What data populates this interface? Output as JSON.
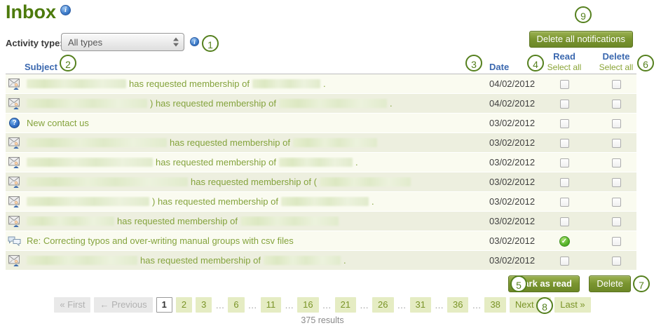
{
  "page": {
    "title": "Inbox"
  },
  "icons": {
    "info_glyph": "i",
    "contact_glyph": "?",
    "check_glyph": "✓"
  },
  "filter": {
    "label": "Activity type:",
    "value": "All types"
  },
  "toolbar": {
    "delete_all_label": "Delete all notifications"
  },
  "table": {
    "headers": {
      "subject": "Subject",
      "date": "Date",
      "read": "Read",
      "delete": "Delete",
      "read_select_all": "Select all",
      "delete_select_all": "Select all"
    },
    "rows": [
      {
        "icon": "membership-request",
        "segments": [
          {
            "blur": 142
          },
          {
            "text": "has requested membership of"
          },
          {
            "blur": 97
          },
          {
            "text": "."
          }
        ],
        "date": "04/02/2012",
        "read": "checkbox",
        "delete": "checkbox"
      },
      {
        "icon": "membership-request",
        "segments": [
          {
            "blur": 172
          },
          {
            "text": ") has requested membership of"
          },
          {
            "blur": 154
          },
          {
            "text": "."
          }
        ],
        "date": "04/02/2012",
        "read": "checkbox",
        "delete": "checkbox"
      },
      {
        "icon": "contact-us",
        "segments": [
          {
            "text": "New contact us"
          }
        ],
        "date": "03/02/2012",
        "read": "checkbox",
        "delete": "checkbox"
      },
      {
        "icon": "membership-request",
        "segments": [
          {
            "blur": 200
          },
          {
            "text": "has requested membership of"
          },
          {
            "blur": 120
          }
        ],
        "date": "03/02/2012",
        "read": "checkbox",
        "delete": "checkbox"
      },
      {
        "icon": "membership-request",
        "segments": [
          {
            "blur": 180
          },
          {
            "text": "has requested membership of"
          },
          {
            "blur": 105
          },
          {
            "text": "."
          }
        ],
        "date": "03/02/2012",
        "read": "checkbox",
        "delete": "checkbox"
      },
      {
        "icon": "membership-request",
        "segments": [
          {
            "blur": 230
          },
          {
            "text": "has requested membership of ("
          },
          {
            "blur": 130
          }
        ],
        "date": "03/02/2012",
        "read": "checkbox",
        "delete": "checkbox"
      },
      {
        "icon": "membership-request",
        "segments": [
          {
            "blur": 175
          },
          {
            "text": ") has requested membership of"
          },
          {
            "blur": 125
          },
          {
            "text": "."
          }
        ],
        "date": "03/02/2012",
        "read": "checkbox",
        "delete": "checkbox"
      },
      {
        "icon": "membership-request",
        "segments": [
          {
            "blur": 125
          },
          {
            "text": "has requested membership of"
          },
          {
            "blur": 140
          }
        ],
        "date": "03/02/2012",
        "read": "checkbox",
        "delete": "checkbox"
      },
      {
        "icon": "forum-post",
        "segments": [
          {
            "text": "Re: Correcting typos and over-writing manual groups with csv files"
          }
        ],
        "date": "03/02/2012",
        "read": "read",
        "delete": "checkbox"
      },
      {
        "icon": "membership-request",
        "segments": [
          {
            "blur": 158
          },
          {
            "text": "has requested membership of"
          },
          {
            "blur": 110
          },
          {
            "text": "."
          }
        ],
        "date": "03/02/2012",
        "read": "checkbox",
        "delete": "checkbox"
      }
    ]
  },
  "actions": {
    "mark_as_read": "Mark as read",
    "delete": "Delete"
  },
  "pagination": {
    "items": [
      {
        "label": "« First",
        "type": "disabled"
      },
      {
        "label": "← Previous",
        "type": "disabled"
      },
      {
        "label": "1",
        "type": "current"
      },
      {
        "label": "2",
        "type": "page"
      },
      {
        "label": "3",
        "type": "page"
      },
      {
        "label": "…",
        "type": "ellipsis"
      },
      {
        "label": "6",
        "type": "page"
      },
      {
        "label": "…",
        "type": "ellipsis"
      },
      {
        "label": "11",
        "type": "page"
      },
      {
        "label": "…",
        "type": "ellipsis"
      },
      {
        "label": "16",
        "type": "page"
      },
      {
        "label": "…",
        "type": "ellipsis"
      },
      {
        "label": "21",
        "type": "page"
      },
      {
        "label": "…",
        "type": "ellipsis"
      },
      {
        "label": "26",
        "type": "page"
      },
      {
        "label": "…",
        "type": "ellipsis"
      },
      {
        "label": "31",
        "type": "page"
      },
      {
        "label": "…",
        "type": "ellipsis"
      },
      {
        "label": "36",
        "type": "page"
      },
      {
        "label": "…",
        "type": "ellipsis"
      },
      {
        "label": "38",
        "type": "page"
      },
      {
        "label": "Next →",
        "type": "page"
      },
      {
        "label": "Last »",
        "type": "page"
      }
    ],
    "results": "375 results"
  },
  "callouts": [
    "1",
    "2",
    "3",
    "4",
    "5",
    "6",
    "7",
    "8",
    "9"
  ],
  "colors": {
    "title_green": "#4c7a0b",
    "header_blue": "#3b68af",
    "link_green": "#84a33c",
    "button_green": "#6c8727",
    "stripe_dark": "#edefdf",
    "stripe_light": "#fafbf0"
  }
}
